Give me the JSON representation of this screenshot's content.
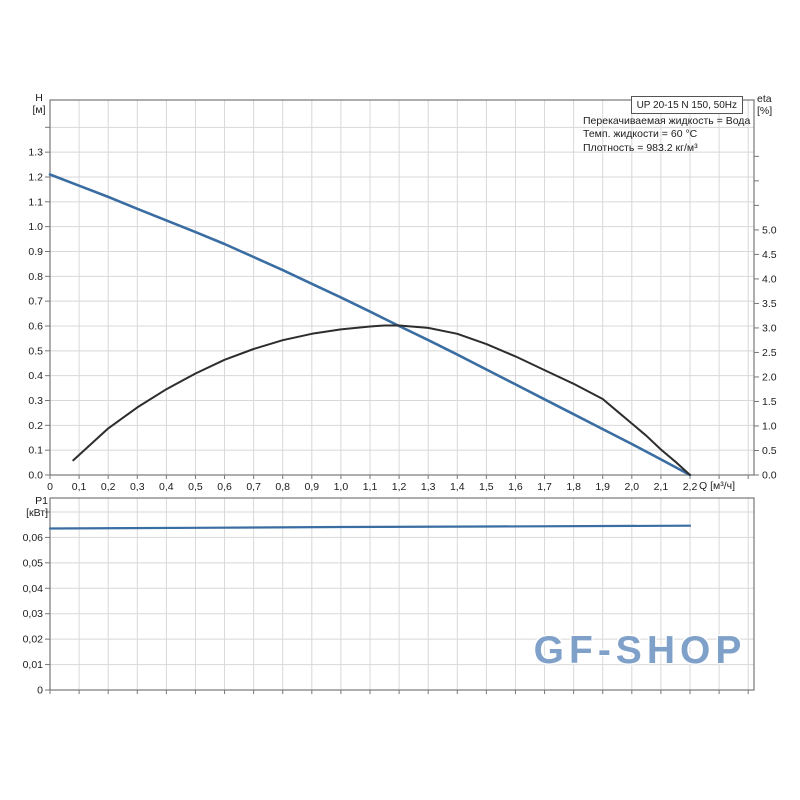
{
  "header": {
    "model_box": "UP 20-15 N 150, 50Hz",
    "info_lines": [
      "Перекачиваемая жидкость = Вода",
      "Темп. жидкости = 60 °C",
      "Плотность = 983.2 кг/м³"
    ]
  },
  "axes": {
    "top_left": [
      "H",
      "[м]"
    ],
    "top_right": [
      "eta",
      "[%]"
    ],
    "x_label": "Q [м³/ч]",
    "bottom_left": [
      "P1",
      "[кВт]"
    ]
  },
  "watermark": {
    "text": "GF-SHOP"
  },
  "colors": {
    "curve_blue": "#3a6da2",
    "curve_black": "#2d2d2d",
    "grid": "#d8d8d8",
    "border": "#777777",
    "tick_text": "#1c1c1c",
    "watermark": "#7fa1c9"
  },
  "chart_data": [
    {
      "type": "line",
      "title": "UP 20-15 N 150, 50Hz",
      "xlabel": "Q [м³/ч]",
      "ylabel_left": "H [м]",
      "ylabel_right": "eta [%]",
      "xlim": [
        0,
        2.42
      ],
      "ylim_left": [
        0,
        1.51
      ],
      "ylim_right": [
        0,
        7.65
      ],
      "grid": true,
      "x_ticks": {
        "values": [
          0,
          0.1,
          0.2,
          0.3,
          0.4,
          0.5,
          0.6,
          0.7,
          0.8,
          0.9,
          1.0,
          1.1,
          1.2,
          1.3,
          1.4,
          1.5,
          1.6,
          1.7,
          1.8,
          1.9,
          2.0,
          2.1,
          2.2,
          2.3,
          2.4
        ],
        "labels": [
          "0",
          "0,1",
          "0,2",
          "0,3",
          "0,4",
          "0,5",
          "0,6",
          "0,7",
          "0,8",
          "0,9",
          "1,0",
          "1,1",
          "1,2",
          "1,3",
          "1,4",
          "1,5",
          "1,6",
          "1,7",
          "1,8",
          "1,9",
          "2,0",
          "2,1",
          "2,2"
        ]
      },
      "left_ticks": {
        "values": [
          0,
          0.1,
          0.2,
          0.3,
          0.4,
          0.5,
          0.6,
          0.7,
          0.8,
          0.9,
          1.0,
          1.1,
          1.2,
          1.3,
          1.4
        ],
        "labels": [
          "0.0",
          "0.1",
          "0.2",
          "0.3",
          "0.4",
          "0.5",
          "0.6",
          "0.7",
          "0.8",
          "0.9",
          "1.0",
          "1.1",
          "1.2",
          "1.3"
        ]
      },
      "right_ticks": {
        "values": [
          0,
          0.5,
          1.0,
          1.5,
          2.0,
          2.5,
          3.0,
          3.5,
          4.0,
          4.5,
          5.0,
          5.5,
          6.0,
          6.5
        ],
        "labels": [
          "0.0",
          "0.5",
          "1.0",
          "1.5",
          "2.0",
          "2.5",
          "3.0",
          "3.5",
          "4.0",
          "4.5",
          "5.0"
        ]
      },
      "series": [
        {
          "name": "head-curve",
          "axis": "left",
          "color": "#3a6da2",
          "width": 2.6,
          "points": [
            [
              0,
              1.21
            ],
            [
              0.1,
              1.165
            ],
            [
              0.2,
              1.12
            ],
            [
              0.3,
              1.072
            ],
            [
              0.4,
              1.025
            ],
            [
              0.5,
              0.978
            ],
            [
              0.6,
              0.93
            ],
            [
              0.7,
              0.878
            ],
            [
              0.8,
              0.825
            ],
            [
              0.9,
              0.77
            ],
            [
              1.0,
              0.715
            ],
            [
              1.1,
              0.658
            ],
            [
              1.2,
              0.6
            ],
            [
              1.3,
              0.543
            ],
            [
              1.4,
              0.485
            ],
            [
              1.5,
              0.425
            ],
            [
              1.6,
              0.365
            ],
            [
              1.7,
              0.305
            ],
            [
              1.8,
              0.245
            ],
            [
              1.9,
              0.185
            ],
            [
              2.0,
              0.125
            ],
            [
              2.1,
              0.063
            ],
            [
              2.2,
              0.0
            ]
          ]
        },
        {
          "name": "eta-curve",
          "axis": "right",
          "color": "#2d2d2d",
          "width": 2.0,
          "points": [
            [
              0.08,
              0.3
            ],
            [
              0.2,
              0.95
            ],
            [
              0.3,
              1.38
            ],
            [
              0.4,
              1.75
            ],
            [
              0.5,
              2.07
            ],
            [
              0.6,
              2.35
            ],
            [
              0.7,
              2.57
            ],
            [
              0.8,
              2.75
            ],
            [
              0.9,
              2.88
            ],
            [
              1.0,
              2.97
            ],
            [
              1.1,
              3.03
            ],
            [
              1.15,
              3.05
            ],
            [
              1.2,
              3.05
            ],
            [
              1.3,
              3.0
            ],
            [
              1.4,
              2.88
            ],
            [
              1.5,
              2.67
            ],
            [
              1.6,
              2.42
            ],
            [
              1.7,
              2.14
            ],
            [
              1.8,
              1.86
            ],
            [
              1.9,
              1.55
            ],
            [
              1.95,
              1.3
            ],
            [
              2.0,
              1.05
            ],
            [
              2.05,
              0.8
            ],
            [
              2.1,
              0.52
            ],
            [
              2.15,
              0.27
            ],
            [
              2.2,
              0.0
            ]
          ]
        }
      ]
    },
    {
      "type": "line",
      "title": "",
      "xlabel": "",
      "ylabel_left": "P1 [кВт]",
      "xlim": [
        0,
        2.42
      ],
      "ylim_left": [
        0,
        0.0755
      ],
      "grid": true,
      "x_ticks": {
        "values": [
          0,
          0.1,
          0.2,
          0.3,
          0.4,
          0.5,
          0.6,
          0.7,
          0.8,
          0.9,
          1.0,
          1.1,
          1.2,
          1.3,
          1.4,
          1.5,
          1.6,
          1.7,
          1.8,
          1.9,
          2.0,
          2.1,
          2.2,
          2.3,
          2.4
        ],
        "labels": []
      },
      "left_ticks": {
        "values": [
          0,
          0.01,
          0.02,
          0.03,
          0.04,
          0.05,
          0.06,
          0.07
        ],
        "labels": [
          "0",
          "0,01",
          "0,02",
          "0,03",
          "0,04",
          "0,05",
          "0,06"
        ]
      },
      "series": [
        {
          "name": "p1-curve",
          "axis": "left",
          "color": "#3a6da2",
          "width": 2.2,
          "points": [
            [
              0,
              0.0635
            ],
            [
              0.5,
              0.0638
            ],
            [
              1.0,
              0.0641
            ],
            [
              1.5,
              0.0643
            ],
            [
              2.2,
              0.0646
            ]
          ]
        }
      ]
    }
  ]
}
